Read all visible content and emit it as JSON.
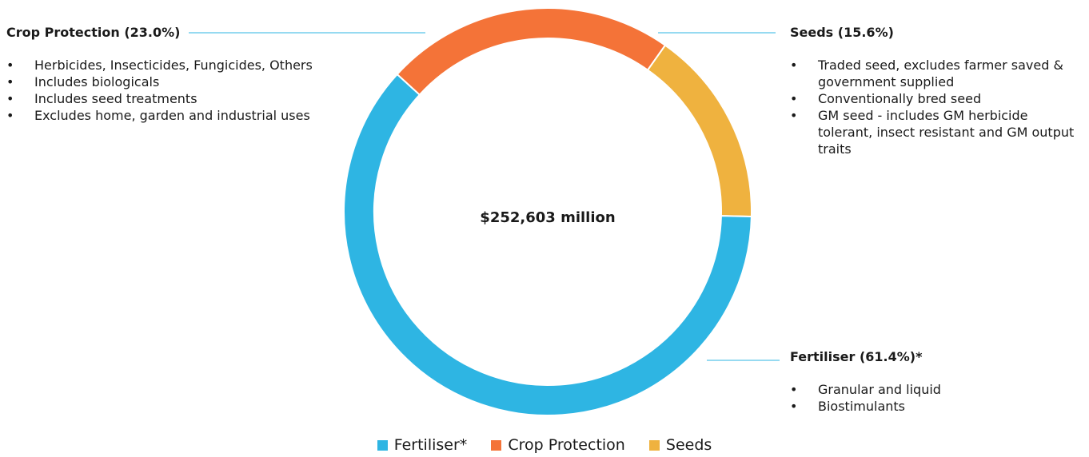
{
  "chart_data": {
    "type": "pie",
    "variant": "donut",
    "center_label": "$252,603 million",
    "slices": [
      {
        "name": "Crop Protection",
        "value": 23.0,
        "color": "#F47338",
        "title": "Crop Protection (23.0%)",
        "notes": [
          "Herbicides, Insecticides, Fungicides, Others",
          "Includes biologicals",
          "Includes seed treatments",
          "Excludes home, garden and industrial uses"
        ]
      },
      {
        "name": "Seeds",
        "value": 15.6,
        "color": "#EFB23F",
        "title": "Seeds (15.6%)",
        "notes": [
          "Traded seed, excludes farmer saved & government supplied",
          "Conventionally bred seed",
          "GM seed - includes GM herbicide tolerant, insect resistant and GM output traits"
        ]
      },
      {
        "name": "Fertiliser*",
        "value": 61.4,
        "color": "#2EB5E3",
        "title": "Fertiliser (61.4%)*",
        "notes": [
          "Granular and liquid",
          "Biostimulants"
        ]
      }
    ],
    "legend": {
      "placement": "bottom",
      "order": [
        "Fertiliser*",
        "Crop Protection",
        "Seeds"
      ]
    }
  }
}
